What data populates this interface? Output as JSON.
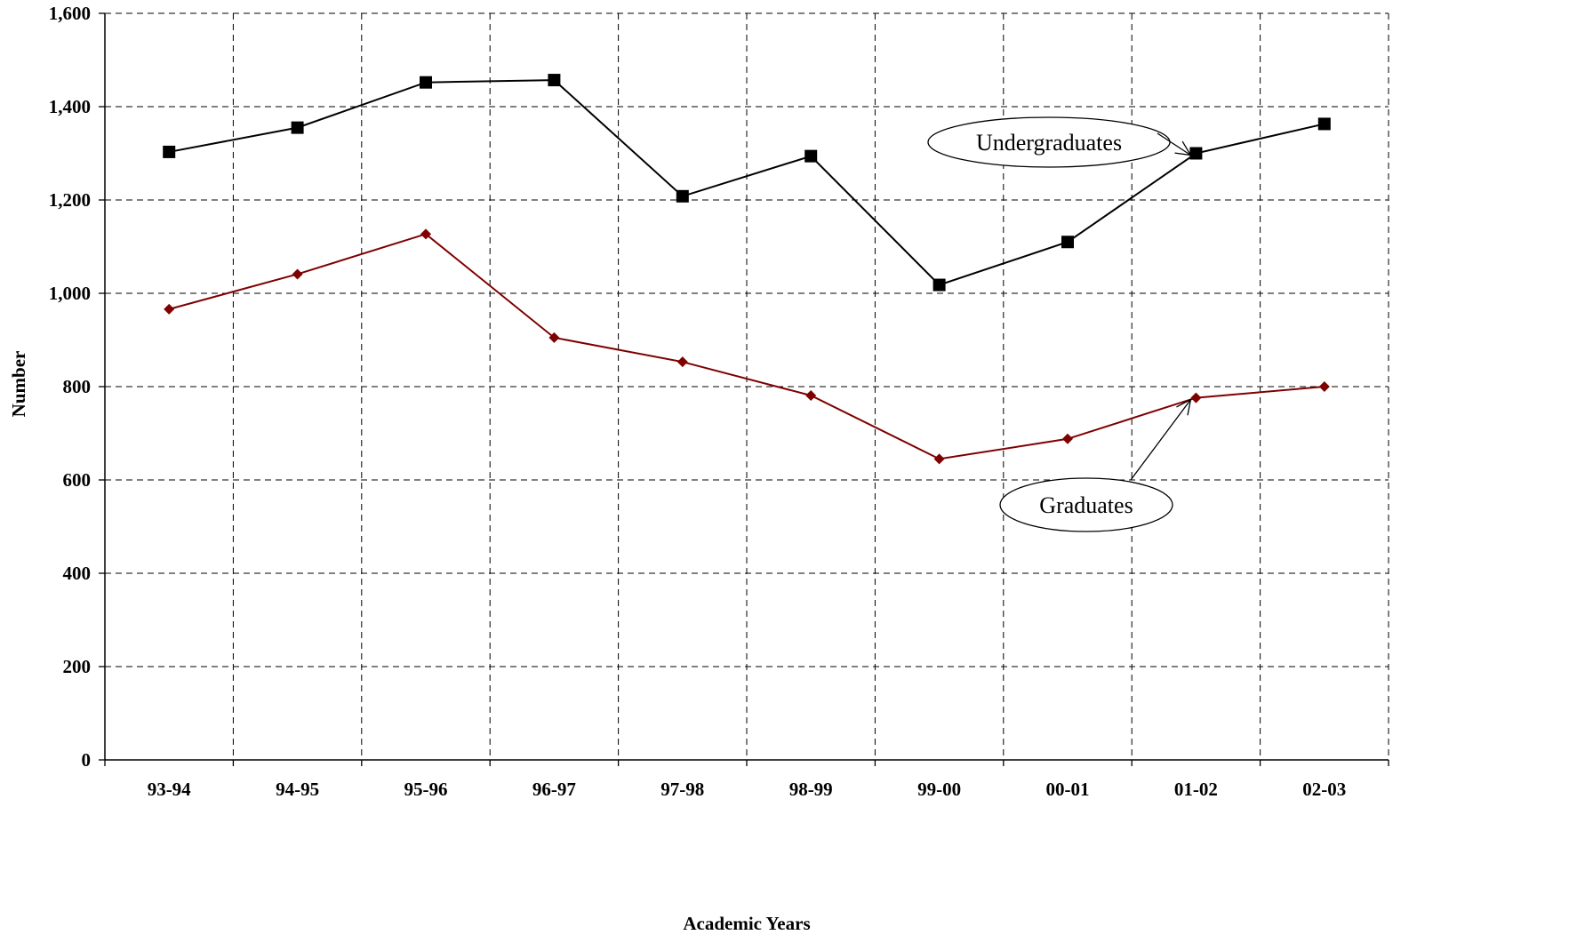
{
  "chart_data": {
    "type": "line",
    "title": "",
    "xlabel": "Academic Years",
    "ylabel": "Number",
    "categories": [
      "93-94",
      "94-95",
      "95-96",
      "96-97",
      "97-98",
      "98-99",
      "99-00",
      "00-01",
      "01-02",
      "02-03"
    ],
    "ylim": [
      0,
      1600
    ],
    "yticks": [
      0,
      200,
      400,
      600,
      800,
      1000,
      1200,
      1400,
      1600
    ],
    "ytick_labels": [
      "0",
      "200",
      "400",
      "600",
      "800",
      "1,000",
      "1,200",
      "1,400",
      "1,600"
    ],
    "grid": true,
    "series": [
      {
        "name": "Undergraduates",
        "values": [
          1303,
          1355,
          1452,
          1457,
          1208,
          1294,
          1018,
          1110,
          1300,
          1363
        ],
        "color": "#000000",
        "marker": "square"
      },
      {
        "name": "Graduates",
        "values": [
          966,
          1041,
          1127,
          905,
          853,
          781,
          645,
          688,
          776,
          800
        ],
        "color": "#7f0000",
        "marker": "diamond"
      }
    ],
    "annotations": [
      {
        "text": "Undergraduates",
        "points_to": {
          "series": "Undergraduates",
          "category": "01-02"
        }
      },
      {
        "text": "Graduates",
        "points_to": {
          "series": "Graduates",
          "category": "01-02"
        }
      }
    ]
  }
}
